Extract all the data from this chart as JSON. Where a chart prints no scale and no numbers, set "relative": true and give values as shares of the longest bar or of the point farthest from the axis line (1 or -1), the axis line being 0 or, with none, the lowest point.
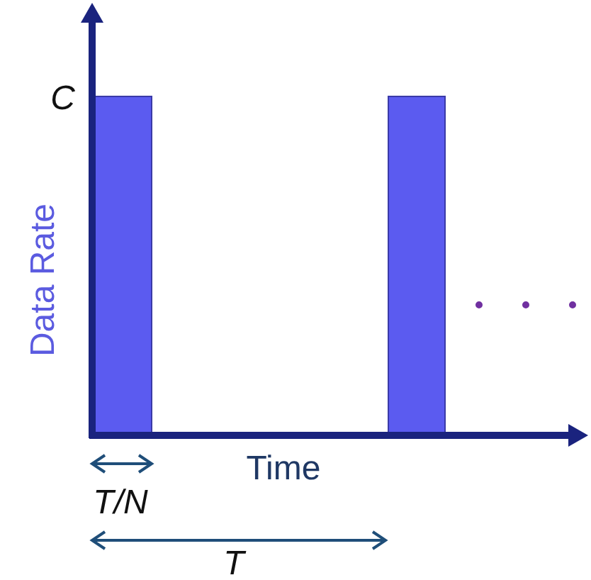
{
  "chart_data": {
    "type": "bar",
    "relative": true,
    "categories": [
      null,
      null
    ],
    "values": [
      1,
      1
    ],
    "color": "#5b5bf0",
    "xlabel": "Time",
    "ylabel": "Data Rate",
    "annotations": [
      "C",
      "T/N",
      "T"
    ]
  }
}
